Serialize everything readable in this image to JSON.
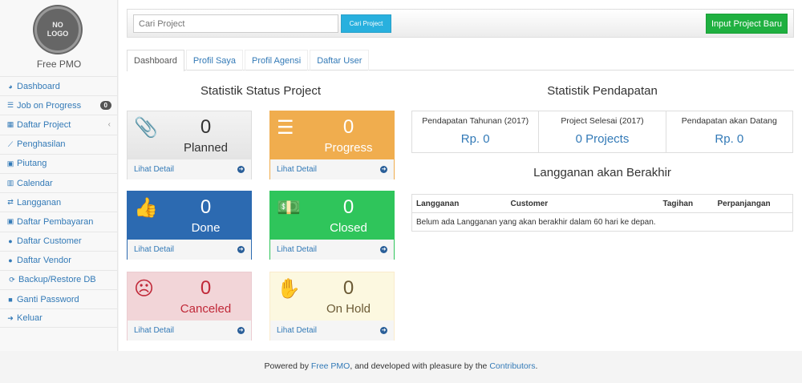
{
  "sidebar": {
    "logo_text": "NO LOGO",
    "brand": "Free PMO",
    "items": [
      {
        "label": "Dashboard",
        "icon": "dashboard-icon"
      },
      {
        "label": "Job on Progress",
        "icon": "tasks-icon",
        "badge": "0"
      },
      {
        "label": "Daftar Project",
        "icon": "table-icon"
      },
      {
        "label": "Penghasilan",
        "icon": "line-chart-icon"
      },
      {
        "label": "Piutang",
        "icon": "money-icon"
      },
      {
        "label": "Calendar",
        "icon": "calendar-icon"
      },
      {
        "label": "Langganan",
        "icon": "retweet-icon"
      },
      {
        "label": "Daftar Pembayaran",
        "icon": "money-icon"
      },
      {
        "label": "Daftar Customer",
        "icon": "users-icon"
      },
      {
        "label": "Daftar Vendor",
        "icon": "users-icon"
      },
      {
        "label": "Backup/Restore DB",
        "icon": "refresh-icon"
      },
      {
        "label": "Ganti Password",
        "icon": "lock-icon"
      },
      {
        "label": "Keluar",
        "icon": "sign-out-icon"
      }
    ]
  },
  "toolbar": {
    "search_placeholder": "Cari Project",
    "search_button": "Cari Project",
    "new_button": "Input Project Baru"
  },
  "tabs": [
    "Dashboard",
    "Profil Saya",
    "Profil Agensi",
    "Daftar User"
  ],
  "status": {
    "title": "Statistik Status Project",
    "detail_label": "Lihat Detail",
    "boxes": [
      {
        "label": "Planned",
        "count": "0",
        "icon": "paperclip-icon"
      },
      {
        "label": "Progress",
        "count": "0",
        "icon": "tasks-icon"
      },
      {
        "label": "Done",
        "count": "0",
        "icon": "thumbs-up-icon"
      },
      {
        "label": "Closed",
        "count": "0",
        "icon": "money-icon"
      },
      {
        "label": "Canceled",
        "count": "0",
        "icon": "frown-icon"
      },
      {
        "label": "On Hold",
        "count": "0",
        "icon": "hand-icon"
      }
    ]
  },
  "income": {
    "title": "Statistik Pendapatan",
    "stats": [
      {
        "label": "Pendapatan Tahunan (2017)",
        "value": "Rp. 0"
      },
      {
        "label": "Project Selesai (2017)",
        "value": "0 Projects"
      },
      {
        "label": "Pendapatan akan Datang",
        "value": "Rp. 0"
      }
    ]
  },
  "subscriptions": {
    "title": "Langganan akan Berakhir",
    "columns": [
      "Langganan",
      "Customer",
      "Tagihan",
      "Perpanjangan"
    ],
    "empty": "Belum ada Langganan yang akan berakhir dalam 60 hari ke depan."
  },
  "footer": {
    "prefix": "Powered by ",
    "link1": "Free PMO",
    "middle": ", and developed with pleasure by the ",
    "link2": "Contributors",
    "suffix": "."
  }
}
